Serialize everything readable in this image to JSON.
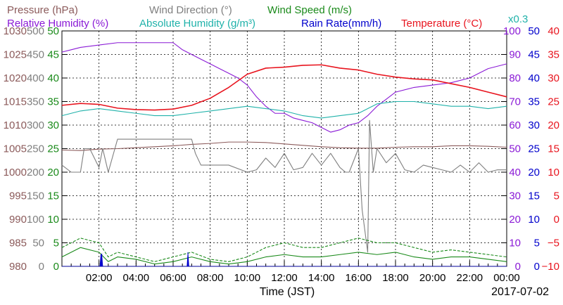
{
  "chart_data": {
    "type": "line",
    "date_label": "2017-07-02",
    "xlabel": "Time (JST)",
    "x_range": [
      0,
      24
    ],
    "x_ticks": [
      "02:00",
      "04:00",
      "06:00",
      "08:00",
      "10:00",
      "12:00",
      "14:00",
      "16:00",
      "18:00",
      "20:00",
      "22:00",
      "00:00"
    ],
    "grid": true,
    "legend": {
      "row1": [
        "Pressure (hPa)",
        "Wind Direction (°)",
        "Wind Speed (m/s)"
      ],
      "row2": [
        "Relative Humidity (%)",
        "Absolute Humidity (g/m³)",
        "Rain Rate(mm/h)",
        "Temperature (°C)"
      ],
      "x_factor": "x0.3"
    },
    "axes": {
      "pressure": {
        "label": "Pressure (hPa)",
        "color": "#8b5a5a",
        "range": [
          980,
          1030
        ],
        "ticks": [
          "1030",
          "1025",
          "1020",
          "1015",
          "1010",
          "1005",
          "1000",
          "995",
          "990",
          "985",
          "980"
        ]
      },
      "wind_direction": {
        "label": "Wind Direction (°)",
        "color": "#7f7f7f",
        "range": [
          0,
          500
        ],
        "ticks": [
          "500",
          "450",
          "400",
          "350",
          "300",
          "250",
          "200",
          "150",
          "100",
          "50",
          "0"
        ]
      },
      "wind_speed": {
        "label": "Wind Speed (m/s)",
        "color": "#1a8a1a",
        "range": [
          0,
          50
        ],
        "ticks": [
          "50",
          "45",
          "40",
          "35",
          "30",
          "25",
          "20",
          "15",
          "10",
          "5",
          "0"
        ]
      },
      "relative_humidity": {
        "label": "Relative Humidity (%)",
        "color": "#8a1ad6",
        "range": [
          0,
          100
        ],
        "ticks": [
          "100",
          "90",
          "80",
          "70",
          "60",
          "50",
          "40",
          "30",
          "20",
          "10",
          "0"
        ]
      },
      "rain_rate": {
        "label": "Rain Rate(mm/h)",
        "color": "#0000cc",
        "range": [
          0,
          50
        ],
        "ticks": [
          "50",
          "45",
          "40",
          "35",
          "30",
          "25",
          "20",
          "15",
          "10",
          "5",
          "0"
        ]
      },
      "temperature": {
        "label": "Temperature (°C)",
        "color": "#e8141e",
        "range": [
          -10,
          40
        ],
        "ticks": [
          "40",
          "35",
          "30",
          "25",
          "20",
          "15",
          "10",
          "5",
          "0",
          "−5",
          "−10"
        ]
      }
    },
    "series": [
      {
        "name": "Pressure (hPa)",
        "axis": "pressure",
        "color": "#8b5a5a",
        "x": [
          0,
          1,
          2,
          3,
          4,
          5,
          6,
          7,
          8,
          9,
          10,
          11,
          12,
          13,
          14,
          15,
          16,
          17,
          18,
          19,
          20,
          21,
          22,
          23,
          24
        ],
        "y": [
          1004.7,
          1004.6,
          1004.9,
          1005.0,
          1005.2,
          1005.4,
          1005.6,
          1005.9,
          1006.1,
          1006.4,
          1006.4,
          1006.3,
          1006.0,
          1005.7,
          1005.4,
          1005.2,
          1005.1,
          1005.1,
          1005.3,
          1005.4,
          1005.4,
          1005.6,
          1005.6,
          1005.5,
          1005.3
        ]
      },
      {
        "name": "Wind Direction (°)",
        "axis": "wind_direction",
        "color": "#7f7f7f",
        "x": [
          0,
          0.5,
          1.0,
          1.2,
          1.5,
          2.0,
          2.2,
          2.5,
          3.0,
          3.5,
          4.0,
          5.0,
          6.0,
          7.0,
          7.2,
          7.5,
          8.0,
          9.0,
          10.0,
          10.5,
          11.0,
          11.5,
          12.0,
          12.5,
          13.0,
          13.5,
          14.0,
          14.5,
          15.0,
          15.3,
          15.5,
          16.0,
          16.2,
          16.5,
          16.6,
          16.8,
          17.0,
          17.5,
          18.0,
          18.5,
          19.0,
          19.5,
          20.0,
          20.5,
          21.0,
          21.5,
          22.0,
          22.5,
          23.0,
          23.5,
          24.0
        ],
        "y": [
          215,
          200,
          200,
          250,
          250,
          210,
          250,
          200,
          270,
          270,
          270,
          270,
          270,
          270,
          240,
          215,
          215,
          215,
          200,
          205,
          230,
          210,
          240,
          205,
          210,
          240,
          215,
          240,
          210,
          200,
          200,
          250,
          120,
          30,
          310,
          200,
          250,
          220,
          240,
          205,
          200,
          215,
          210,
          205,
          200,
          215,
          200,
          220,
          200,
          205,
          205
        ]
      },
      {
        "name": "Wind Speed (m/s)",
        "axis": "wind_speed",
        "color": "#1a8a1a",
        "x": [
          0,
          1,
          2,
          2.5,
          3,
          4,
          5,
          6,
          7,
          8,
          9,
          10,
          11,
          12,
          13,
          14,
          15,
          16,
          17,
          18,
          19,
          20,
          21,
          22,
          23,
          24
        ],
        "y": [
          2,
          4,
          3,
          1,
          2,
          1.5,
          0.5,
          1,
          2,
          1,
          0.5,
          1,
          2,
          2.5,
          2,
          2,
          2.5,
          3,
          2.5,
          3,
          2,
          1.5,
          2,
          2,
          1.5,
          1
        ]
      },
      {
        "name": "Wind Speed Max (m/s)",
        "axis": "wind_speed",
        "color": "#1a8a1a",
        "dashed": true,
        "x": [
          0,
          1,
          2,
          2.5,
          3,
          4,
          5,
          6,
          7,
          8,
          9,
          10,
          11,
          12,
          13,
          14,
          15,
          16,
          17,
          18,
          19,
          20,
          21,
          22,
          23,
          24
        ],
        "y": [
          4,
          6,
          5,
          2,
          3,
          2,
          1,
          2,
          3,
          1.5,
          1,
          2,
          4,
          5,
          4,
          4,
          5,
          6,
          5,
          5,
          4,
          3,
          3.5,
          3,
          2.5,
          2
        ]
      },
      {
        "name": "Relative Humidity (%)",
        "axis": "relative_humidity",
        "color": "#8a1ad6",
        "x": [
          0,
          0.5,
          1,
          2,
          3,
          4,
          5,
          6,
          6.5,
          7,
          7.5,
          8,
          8.5,
          9,
          9.5,
          10,
          10.5,
          11,
          11.5,
          12,
          12.5,
          13,
          13.5,
          14,
          14.5,
          15,
          15.5,
          16,
          16.5,
          17,
          17.5,
          18,
          19,
          20,
          21,
          22,
          22.5,
          23,
          23.5,
          24
        ],
        "y": [
          91,
          92,
          93,
          94,
          95,
          95,
          95,
          95,
          92,
          90,
          88,
          86,
          84,
          82,
          80,
          77,
          72,
          68,
          65,
          65,
          63,
          62,
          61,
          59,
          57,
          58,
          60,
          61,
          64,
          68,
          71,
          74,
          76,
          77,
          78,
          80,
          82,
          84,
          85,
          86
        ]
      },
      {
        "name": "Absolute Humidity (g/m³)",
        "axis": "relative_humidity",
        "color": "#20b2aa",
        "x": [
          0,
          1,
          2,
          3,
          4,
          5,
          6,
          7,
          8,
          9,
          10,
          11,
          12,
          13,
          14,
          15,
          16,
          17,
          18,
          19,
          20,
          21,
          22,
          23,
          24
        ],
        "y": [
          64,
          66,
          67,
          66,
          65,
          64,
          64,
          65,
          66,
          67,
          68,
          67,
          66,
          64,
          63,
          64,
          65,
          69,
          70,
          70,
          69,
          68,
          68,
          67,
          68
        ]
      },
      {
        "name": "Rain Rate(mm/h)",
        "axis": "rain_rate",
        "color": "#0000cc",
        "x": [
          0,
          2.05,
          2.1,
          2.15,
          2.2,
          6.7,
          6.75,
          6.8,
          6.85,
          24
        ],
        "y": [
          0,
          0,
          2.4,
          2.6,
          0,
          0,
          0,
          2.9,
          0,
          0
        ]
      },
      {
        "name": "Temperature (°C)",
        "axis": "temperature",
        "color": "#e8141e",
        "x": [
          0,
          1,
          2,
          3,
          4,
          5,
          6,
          7,
          8,
          9,
          10,
          11,
          12,
          13,
          14,
          15,
          16,
          17,
          18,
          19,
          20,
          21,
          22,
          23,
          24
        ],
        "y": [
          24.2,
          24.6,
          24.4,
          23.6,
          23.3,
          23.2,
          23.4,
          24.2,
          25.7,
          28.0,
          30.8,
          32.1,
          32.3,
          32.7,
          32.8,
          32.1,
          31.7,
          30.8,
          30.2,
          29.8,
          29.6,
          28.8,
          28.0,
          27.0,
          26.0
        ]
      }
    ]
  }
}
